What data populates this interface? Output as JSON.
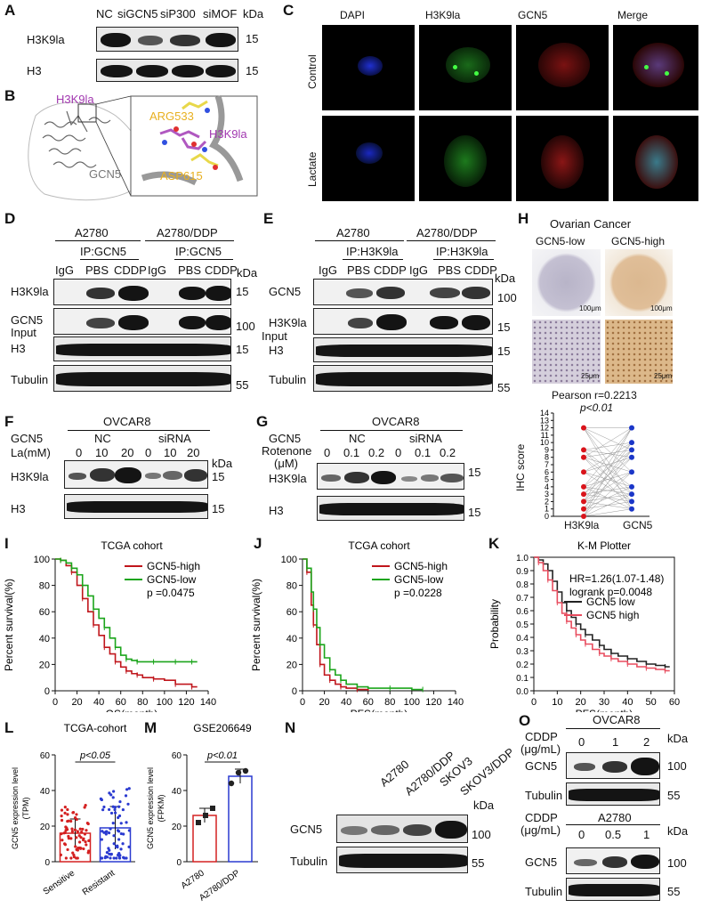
{
  "panels": {
    "A": "A",
    "B": "B",
    "C": "C",
    "D": "D",
    "E": "E",
    "F": "F",
    "G": "G",
    "H": "H",
    "I": "I",
    "J": "J",
    "K": "K",
    "L": "L",
    "M": "M",
    "N": "N",
    "O": "O"
  },
  "common": {
    "kda": "kDa",
    "m15": "15",
    "m55": "55",
    "m100": "100",
    "h3": "H3",
    "h3k9la": "H3K9la",
    "gcn5": "GCN5",
    "tubulin": "Tubulin",
    "input": "Input",
    "igg": "IgG",
    "pbs": "PBS",
    "cddp": "CDDP",
    "nc": "NC",
    "sirna": "siRNA",
    "a2780": "A2780",
    "a2780ddp": "A2780/DDP",
    "ipgcn5": "IP:GCN5",
    "iph3": "IP:H3K9la",
    "ovcar8": "OVCAR8",
    "gcn5lbl": "GCN5"
  },
  "panelA": {
    "lanes": [
      "NC",
      "siGCN5",
      "siP300",
      "siMOF"
    ]
  },
  "panelB": {
    "h3k9la": "H3K9la",
    "gcn5": "GCN5",
    "arg": "ARG533",
    "asp": "ASP615",
    "h3k9la2": "H3K9la"
  },
  "panelC": {
    "cols": [
      "DAPI",
      "H3K9la",
      "GCN5",
      "Merge"
    ],
    "rows": [
      "Control",
      "Lactate"
    ]
  },
  "panelF": {
    "la": "La(mM)",
    "doses": [
      "0",
      "10",
      "20",
      "0",
      "10",
      "20"
    ]
  },
  "panelG": {
    "rot1": "Rotenone",
    "rot2": "(μM)",
    "doses": [
      "0",
      "0.1",
      "0.2",
      "0",
      "0.1",
      "0.2"
    ]
  },
  "panelH": {
    "title": "Ovarian Cancer",
    "low": "GCN5-low",
    "high": "GCN5-high",
    "s100a": "100μm",
    "s100b": "100μm",
    "s25a": "25μm",
    "s25b": "25μm",
    "pearson": "Pearson r=0.2213",
    "p": "p<0.01",
    "ylabel": "IHC score",
    "xlabels": [
      "H3K9la",
      "GCN5"
    ],
    "yticks": [
      "0",
      "1",
      "2",
      "3",
      "4",
      "5",
      "6",
      "7",
      "8",
      "9",
      "10",
      "11",
      "12",
      "13",
      "14"
    ],
    "h3_color": "#d9141b",
    "gcn5_color": "#1a36c8"
  },
  "panelL": {
    "title": "TCGA-cohort",
    "ylabel1": "GCN5 expression level",
    "ylabel2": "(TPM)",
    "p": "p<0.05",
    "yticks": [
      "0",
      "20",
      "40",
      "60"
    ],
    "cats": [
      "Sensitive",
      "Resistant"
    ]
  },
  "panelM": {
    "title": "GSE206649",
    "ylabel1": "GCN5 expression level",
    "ylabel2": "(FPKM)",
    "p": "p<0.01",
    "yticks": [
      "0",
      "20",
      "40",
      "60"
    ],
    "cats": [
      "A2780",
      "A2780/DDP"
    ]
  },
  "panelN": {
    "lanes": [
      "A2780",
      "A2780/DDP",
      "SKOV3",
      "SKOV3/DDP"
    ]
  },
  "panelO": {
    "cddp1": "CDDP",
    "cddp2": "(μg/mL)",
    "top_doses": [
      "0",
      "1",
      "2"
    ],
    "bot_doses": [
      "0",
      "0.5",
      "1"
    ]
  },
  "chart_data": [
    {
      "id": "I",
      "type": "line",
      "title": "TCGA cohort",
      "xlabel": "OS(month)",
      "ylabel": "Percent survival(%)",
      "xlim": [
        0,
        140
      ],
      "ylim": [
        0,
        100
      ],
      "xticks": [
        "0",
        "20",
        "40",
        "60",
        "80",
        "100",
        "120",
        "140"
      ],
      "yticks": [
        "0",
        "20",
        "40",
        "60",
        "80",
        "100"
      ],
      "legend": "top-right",
      "p": "p =0.0475",
      "series": [
        {
          "name": "GCN5-high",
          "color": "#c0161c",
          "x": [
            0,
            5,
            10,
            15,
            20,
            25,
            30,
            35,
            40,
            45,
            50,
            55,
            60,
            65,
            70,
            75,
            80,
            90,
            100,
            110,
            120,
            125,
            130
          ],
          "y": [
            100,
            99,
            95,
            90,
            80,
            70,
            60,
            50,
            42,
            33,
            28,
            22,
            18,
            15,
            13,
            12,
            10,
            9,
            8,
            5,
            5,
            3,
            3
          ]
        },
        {
          "name": "GCN5-low",
          "color": "#1ba51b",
          "x": [
            0,
            5,
            10,
            15,
            20,
            25,
            30,
            35,
            40,
            45,
            50,
            55,
            60,
            65,
            70,
            75,
            80,
            90,
            100,
            110,
            120,
            125,
            130
          ],
          "y": [
            100,
            99,
            97,
            93,
            88,
            80,
            72,
            62,
            55,
            48,
            40,
            33,
            27,
            24,
            23,
            22,
            22,
            22,
            22,
            22,
            22,
            22,
            22
          ]
        }
      ]
    },
    {
      "id": "J",
      "type": "line",
      "title": "TCGA cohort",
      "xlabel": "PFS(month)",
      "ylabel": "Percent survival(%)",
      "xlim": [
        0,
        140
      ],
      "ylim": [
        0,
        100
      ],
      "xticks": [
        "0",
        "20",
        "40",
        "60",
        "80",
        "100",
        "120",
        "140"
      ],
      "yticks": [
        "0",
        "20",
        "40",
        "60",
        "80",
        "100"
      ],
      "legend": "top-right",
      "p": "p =0.0228",
      "series": [
        {
          "name": "GCN5-high",
          "color": "#c0161c",
          "x": [
            0,
            4,
            8,
            10,
            13,
            16,
            20,
            25,
            30,
            35,
            40,
            50,
            60
          ],
          "y": [
            100,
            90,
            65,
            50,
            35,
            20,
            12,
            8,
            5,
            3,
            2,
            1,
            0
          ]
        },
        {
          "name": "GCN5-low",
          "color": "#1ba51b",
          "x": [
            0,
            4,
            8,
            10,
            13,
            16,
            20,
            25,
            30,
            35,
            40,
            50,
            60,
            80,
            100,
            110
          ],
          "y": [
            100,
            93,
            75,
            62,
            48,
            35,
            25,
            16,
            12,
            8,
            5,
            3,
            2,
            2,
            1,
            1
          ]
        }
      ]
    },
    {
      "id": "K",
      "type": "line",
      "title": "K-M Plotter",
      "xlabel": "PFS(month)",
      "ylabel": "Probability",
      "xlim": [
        0,
        60
      ],
      "ylim": [
        0,
        1
      ],
      "xticks": [
        "0",
        "10",
        "20",
        "30",
        "40",
        "50",
        "60"
      ],
      "yticks": [
        "0.0",
        "0.1",
        "0.2",
        "0.3",
        "0.4",
        "0.5",
        "0.6",
        "0.7",
        "0.8",
        "0.9",
        "1.0"
      ],
      "legend": "top-right",
      "hr": "HR=1.26(1.07-1.48)",
      "logrank": "logrank p=0.0048",
      "series": [
        {
          "name": "GCN5 low",
          "color": "#222222",
          "x": [
            0,
            2,
            4,
            6,
            8,
            10,
            12,
            14,
            16,
            18,
            20,
            22,
            25,
            28,
            30,
            33,
            36,
            40,
            44,
            48,
            52,
            56,
            58
          ],
          "y": [
            1.0,
            0.98,
            0.95,
            0.9,
            0.82,
            0.74,
            0.66,
            0.6,
            0.55,
            0.5,
            0.46,
            0.42,
            0.38,
            0.34,
            0.31,
            0.28,
            0.26,
            0.24,
            0.22,
            0.2,
            0.19,
            0.18,
            0.18
          ]
        },
        {
          "name": "GCN5 high",
          "color": "#e84c5e",
          "x": [
            0,
            2,
            4,
            6,
            8,
            10,
            12,
            14,
            16,
            18,
            20,
            22,
            25,
            28,
            30,
            33,
            36,
            40,
            44,
            48,
            52,
            56,
            58
          ],
          "y": [
            1.0,
            0.96,
            0.9,
            0.83,
            0.75,
            0.66,
            0.58,
            0.52,
            0.47,
            0.42,
            0.38,
            0.35,
            0.31,
            0.28,
            0.26,
            0.24,
            0.22,
            0.2,
            0.18,
            0.17,
            0.16,
            0.15,
            0.15
          ]
        }
      ]
    },
    {
      "id": "L",
      "type": "bar",
      "title": "TCGA-cohort",
      "categories": [
        "Sensitive",
        "Resistant"
      ],
      "values": [
        16,
        19
      ],
      "errors": [
        8,
        12
      ],
      "ylim": [
        0,
        60
      ],
      "colors": [
        "#d42020",
        "#2a3ad0"
      ]
    },
    {
      "id": "M",
      "type": "bar",
      "title": "GSE206649",
      "categories": [
        "A2780",
        "A2780/DDP"
      ],
      "values": [
        26,
        48
      ],
      "errors": [
        4,
        4
      ],
      "ylim": [
        0,
        60
      ],
      "colors": [
        "#d42020",
        "#2a3ad0"
      ],
      "points": [
        [
          22,
          26,
          30
        ],
        [
          44,
          50,
          51
        ]
      ]
    }
  ]
}
